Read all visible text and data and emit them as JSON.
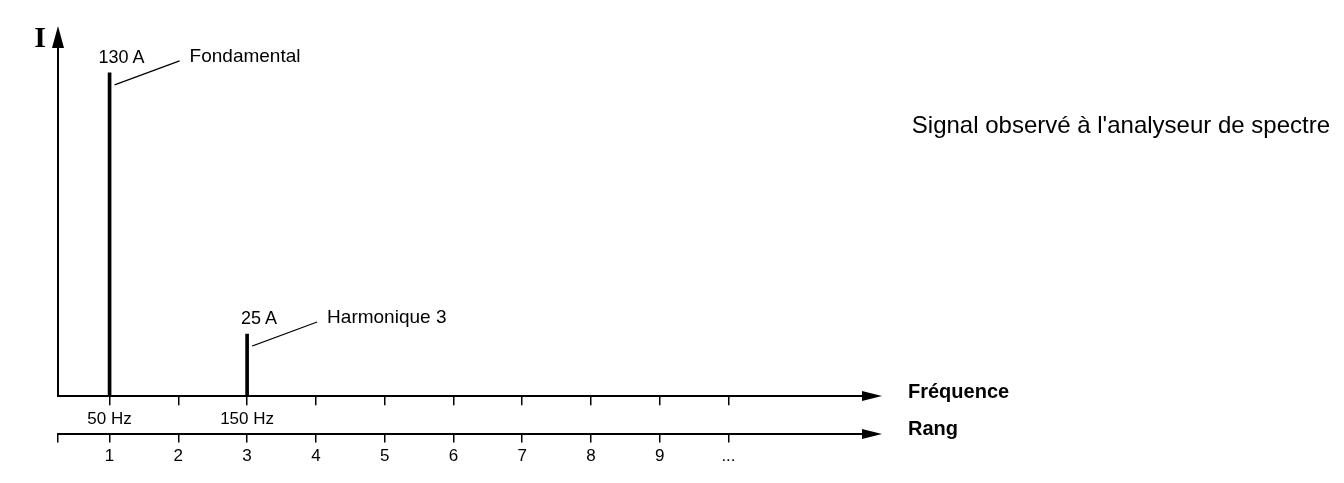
{
  "chart_data": {
    "type": "bar",
    "ylabel": "I",
    "xlabel": "Rang",
    "x2label": "Fréquence",
    "x": [
      1,
      3
    ],
    "values": [
      130,
      25
    ],
    "color": "#000000",
    "value_labels": [
      "130 A",
      "25 A"
    ],
    "xlim": [
      0.25,
      12
    ],
    "xticks": [
      {
        "value": 0.25,
        "label": null
      },
      1,
      2,
      3,
      4,
      5,
      6,
      7,
      8,
      9,
      {
        "value": 10,
        "label": "..."
      }
    ],
    "x2lim": [
      12.5,
      600
    ],
    "x2ticks": [
      {
        "value": 50,
        "label": "50 Hz"
      },
      {
        "value": 100,
        "label": null
      },
      {
        "value": 150,
        "label": "150 Hz"
      },
      {
        "value": 200,
        "label": null
      },
      {
        "value": 250,
        "label": null
      },
      {
        "value": 300,
        "label": null
      },
      {
        "value": 350,
        "label": null
      },
      {
        "value": 400,
        "label": null
      },
      {
        "value": 450,
        "label": null
      },
      {
        "value": 500,
        "label": null
      }
    ],
    "annotations": [
      "Fondamental",
      "Harmonique 3",
      "Signal observé à l'analyseur de spectre"
    ]
  }
}
